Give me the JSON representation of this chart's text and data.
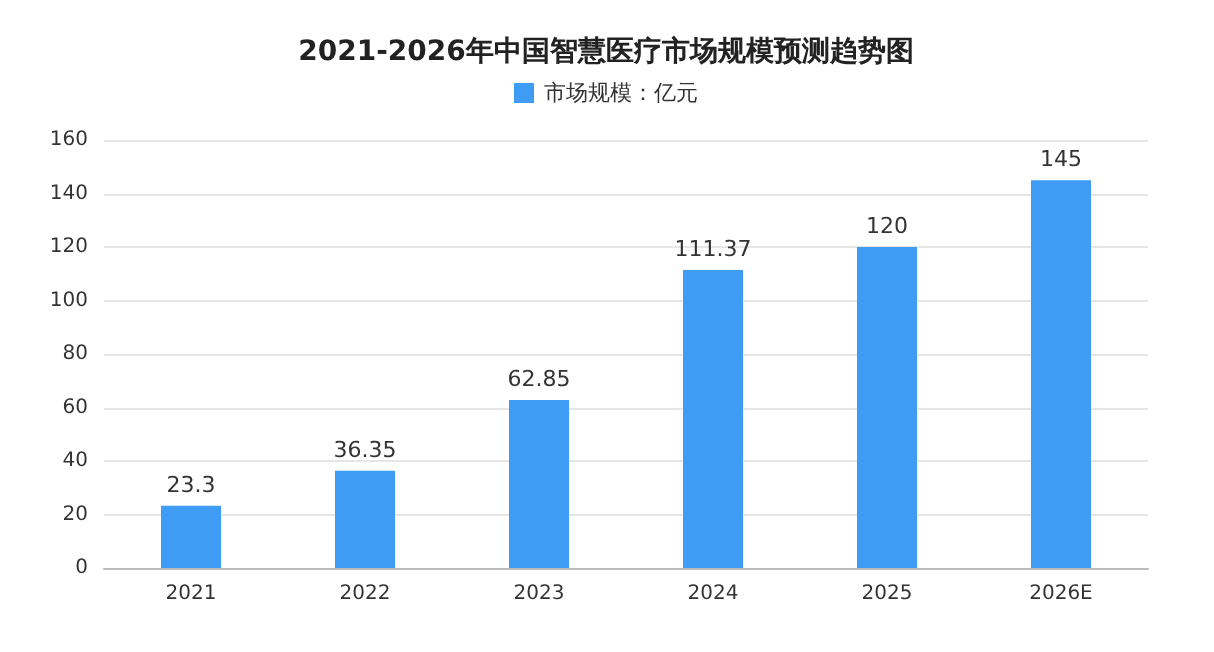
{
  "chart_data": {
    "type": "bar",
    "title": "2021-2026年中国智慧医疗市场规模预测趋势图",
    "categories": [
      "2021",
      "2022",
      "2023",
      "2024",
      "2025",
      "2026E"
    ],
    "series": [
      {
        "name": "市场规模：亿元",
        "color": "#3e9cf4",
        "values": [
          23.3,
          36.35,
          62.85,
          111.37,
          120,
          145
        ]
      }
    ],
    "ylim": [
      0,
      160
    ],
    "yticks": [
      0,
      20,
      40,
      60,
      80,
      100,
      120,
      140,
      160
    ],
    "grid": "y",
    "legend": "top",
    "data_labels": true
  }
}
